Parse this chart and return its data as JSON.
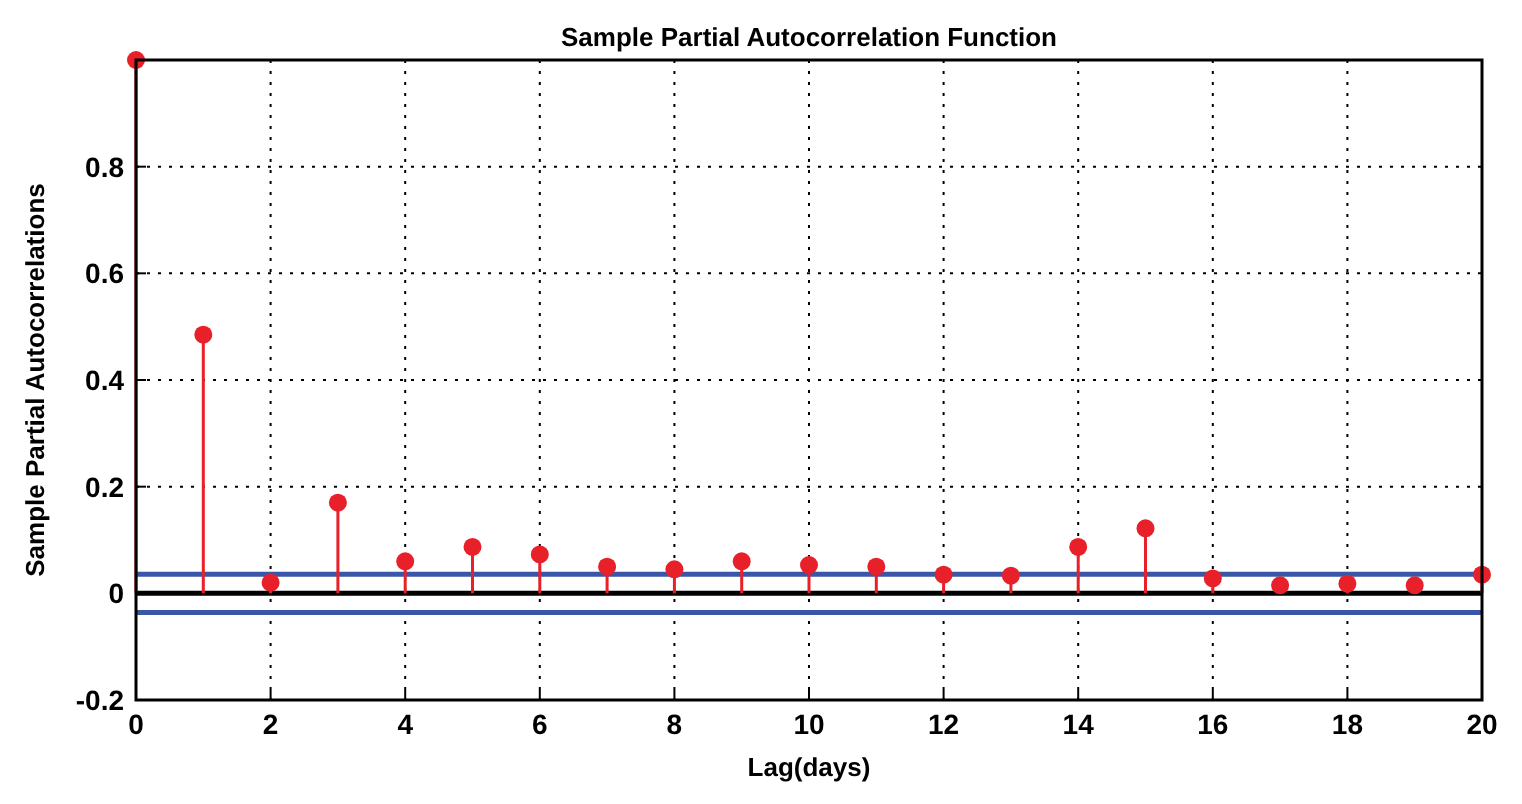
{
  "chart_data": {
    "type": "lollipop",
    "title": "Sample Partial Autocorrelation Function",
    "xlabel": "Lag(days)",
    "ylabel": "Sample Partial Autocorrelations",
    "x": [
      0,
      1,
      2,
      3,
      4,
      5,
      6,
      7,
      8,
      9,
      10,
      11,
      12,
      13,
      14,
      15,
      16,
      17,
      18,
      19,
      20
    ],
    "series": [
      {
        "color": "#e8202a",
        "values": [
          1,
          0.485,
          0.02,
          0.17,
          0.06,
          0.087,
          0.073,
          0.05,
          0.045,
          0.06,
          0.053,
          0.05,
          0.035,
          0.033,
          0.087,
          0.122,
          0.028,
          0.015,
          0.018,
          0.015,
          0.035
        ]
      }
    ],
    "xlim": [
      0,
      20
    ],
    "xticks": [
      0,
      2,
      4,
      6,
      8,
      10,
      12,
      14,
      16,
      18,
      20
    ],
    "ylim": [
      -0.2,
      1
    ],
    "yticks": [
      -0.2,
      0,
      0.2,
      0.4,
      0.6,
      0.8,
      {
        "value": 1,
        "label": null
      }
    ],
    "ref_lines": [
      {
        "axis": "y",
        "value": 0.036,
        "color": "#3a56a8"
      },
      {
        "axis": "y",
        "value": -0.036,
        "color": "#3a56a8"
      },
      {
        "axis": "y",
        "value": 0,
        "color": "#000000"
      }
    ],
    "grid": true,
    "marker": "circle"
  }
}
